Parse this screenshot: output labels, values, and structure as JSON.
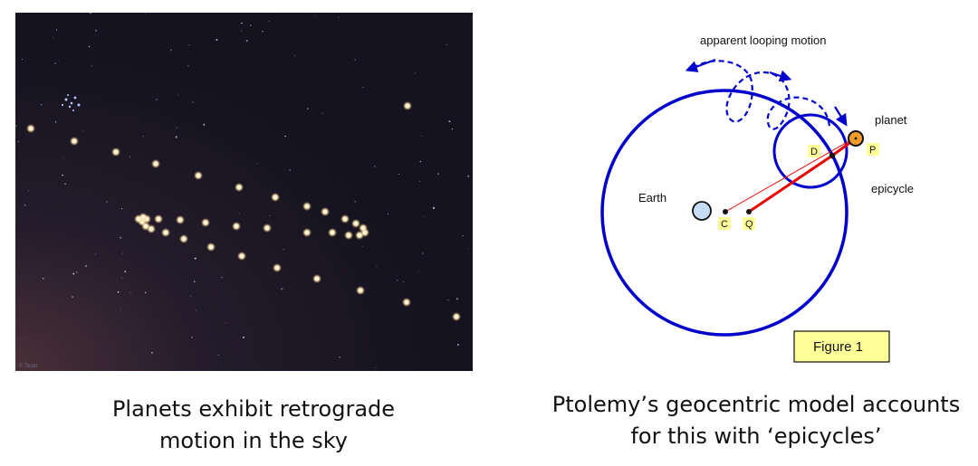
{
  "photo": {
    "caption_lines": [
      "Planets exhibit retrograde",
      "motion in the sky"
    ],
    "credit": "© Tezel",
    "colors": {
      "sky_top": "#15131f",
      "sky_bottom_left": "#4a3038",
      "planet": "#ffe8b0"
    }
  },
  "diagram": {
    "labels": {
      "motion": "apparent looping motion",
      "planet": "planet",
      "epicycle": "epicycle",
      "earth": "Earth",
      "point_c": "C",
      "point_q": "Q",
      "point_d": "D",
      "point_p": "P",
      "figure": "Figure 1"
    },
    "colors": {
      "orbit": "#0000cc",
      "line": "#ee0000",
      "earth_fill": "#c6dcf5",
      "planet_fill": "#f59b2a",
      "label_bg": "#ffff99"
    },
    "caption_lines": [
      "Ptolemy’s geocentric model accounts",
      "for this with ‘epicycles’"
    ]
  }
}
